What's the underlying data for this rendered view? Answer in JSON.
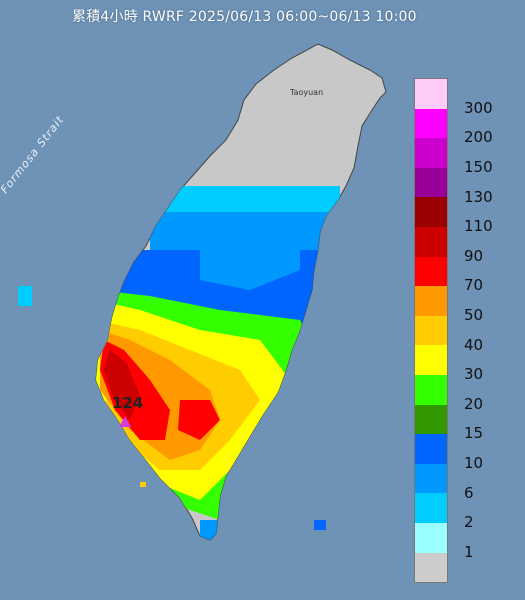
{
  "title": "累積4小時 RWRF 2025/06/13 06:00~06/13 10:00",
  "strait_label": "Formosa Strait",
  "place_label": "Taoyuan",
  "max_label": "124",
  "legend": {
    "colors": [
      "#ffccf7",
      "#ff00ff",
      "#cc00cc",
      "#990099",
      "#990000",
      "#cc0000",
      "#ff0000",
      "#ff9900",
      "#ffcc00",
      "#ffff00",
      "#33ff00",
      "#339900",
      "#0066ff",
      "#0099ff",
      "#00ccff",
      "#99ffff",
      "#cccccc"
    ],
    "labels": [
      "300",
      "200",
      "150",
      "130",
      "110",
      "90",
      "70",
      "50",
      "40",
      "30",
      "20",
      "15",
      "10",
      "6",
      "2",
      "1"
    ]
  },
  "background": {
    "sea": "#6f93b6",
    "land": "#c8c8c8"
  }
}
